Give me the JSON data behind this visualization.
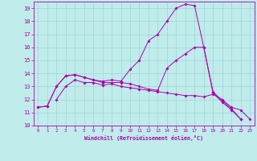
{
  "xlabel": "Windchill (Refroidissement éolien,°C)",
  "bg_color": "#c0ecec",
  "grid_color": "#a0d4d4",
  "line_color": "#aa00aa",
  "xlim": [
    -0.5,
    23.5
  ],
  "ylim": [
    10,
    19.5
  ],
  "yticks": [
    10,
    11,
    12,
    13,
    14,
    15,
    16,
    17,
    18,
    19
  ],
  "xticks": [
    0,
    1,
    2,
    3,
    4,
    5,
    6,
    7,
    8,
    9,
    10,
    11,
    12,
    13,
    14,
    15,
    16,
    17,
    18,
    19,
    20,
    21,
    22,
    23
  ],
  "line1_x": [
    0,
    1,
    2,
    3,
    4,
    5,
    6,
    7,
    8,
    9,
    10,
    11,
    12,
    13,
    14,
    15,
    16,
    17,
    18,
    19,
    20,
    21,
    22
  ],
  "line1_y": [
    11.4,
    11.5,
    13.0,
    13.8,
    13.9,
    13.7,
    13.5,
    13.4,
    13.5,
    13.4,
    14.3,
    15.0,
    16.5,
    17.0,
    18.0,
    19.0,
    19.3,
    19.2,
    16.0,
    12.5,
    11.8,
    11.2,
    10.5
  ],
  "line2_x": [
    0,
    1,
    2,
    3,
    4,
    5,
    6,
    7,
    8,
    9,
    10,
    11,
    12,
    13,
    14,
    15,
    16,
    17,
    18,
    19,
    20,
    21,
    22,
    23
  ],
  "line2_y": [
    11.4,
    11.5,
    13.0,
    13.8,
    13.9,
    13.7,
    13.5,
    13.3,
    13.3,
    13.3,
    13.2,
    13.0,
    12.8,
    12.7,
    14.4,
    15.0,
    15.5,
    16.0,
    16.0,
    12.6,
    11.9,
    11.3,
    10.5,
    null
  ],
  "line3_x": [
    2,
    3,
    4,
    5,
    6,
    7,
    8,
    9,
    10,
    11,
    12,
    13,
    14,
    15,
    16,
    17,
    18,
    19,
    20,
    21,
    22,
    23
  ],
  "line3_y": [
    12.0,
    13.0,
    13.5,
    13.3,
    13.3,
    13.1,
    13.2,
    13.0,
    12.9,
    12.8,
    12.7,
    12.6,
    12.5,
    12.4,
    12.3,
    12.3,
    12.2,
    12.4,
    12.0,
    11.4,
    11.2,
    10.5
  ]
}
